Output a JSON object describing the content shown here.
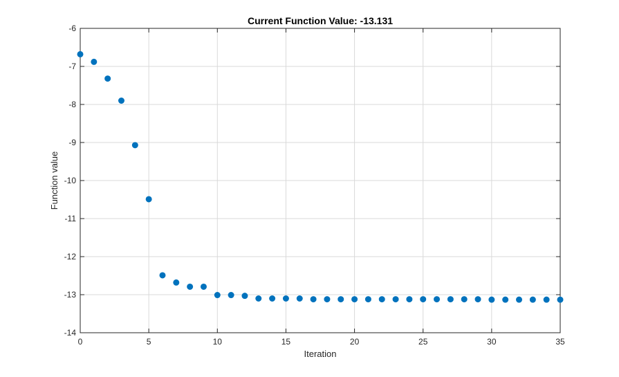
{
  "chart_data": {
    "type": "scatter",
    "title": "Current Function Value: -13.131",
    "xlabel": "Iteration",
    "ylabel": "Function value",
    "xlim": [
      0,
      35
    ],
    "ylim": [
      -14,
      -6
    ],
    "xticks": [
      0,
      5,
      10,
      15,
      20,
      25,
      30,
      35
    ],
    "yticks": [
      -14,
      -13,
      -12,
      -11,
      -10,
      -9,
      -8,
      -7,
      -6
    ],
    "grid": true,
    "marker_color": "#0072BD",
    "x": [
      0,
      1,
      2,
      3,
      4,
      5,
      6,
      7,
      8,
      9,
      10,
      11,
      12,
      13,
      14,
      15,
      16,
      17,
      18,
      19,
      20,
      21,
      22,
      23,
      24,
      25,
      26,
      27,
      28,
      29,
      30,
      31,
      32,
      33,
      34,
      35
    ],
    "y": [
      -6.68,
      -6.88,
      -7.32,
      -7.9,
      -9.07,
      -10.49,
      -12.49,
      -12.68,
      -12.79,
      -12.79,
      -13.01,
      -13.01,
      -13.03,
      -13.1,
      -13.1,
      -13.1,
      -13.1,
      -13.12,
      -13.12,
      -13.12,
      -13.12,
      -13.12,
      -13.12,
      -13.12,
      -13.12,
      -13.12,
      -13.12,
      -13.12,
      -13.12,
      -13.12,
      -13.13,
      -13.13,
      -13.13,
      -13.13,
      -13.13,
      -13.131
    ]
  }
}
